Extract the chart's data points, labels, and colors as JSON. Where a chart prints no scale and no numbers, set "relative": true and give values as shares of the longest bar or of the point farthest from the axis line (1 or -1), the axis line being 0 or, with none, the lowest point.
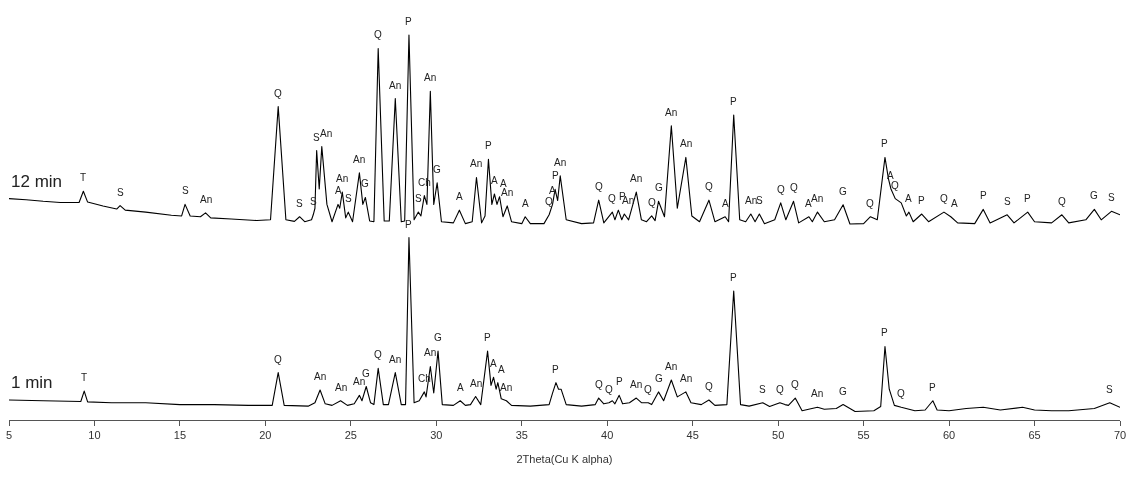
{
  "chart_data": {
    "type": "line",
    "relative": true,
    "xlabel": "2Theta(Cu K alpha)",
    "xlim": [
      5,
      70
    ],
    "xticks": [
      5,
      10,
      15,
      20,
      25,
      30,
      35,
      40,
      45,
      50,
      55,
      60,
      65,
      70
    ],
    "grid": false,
    "legend": false,
    "marker": "none",
    "line_style": "solid",
    "tick_labels": "x",
    "series": [
      {
        "name": "12 min",
        "color": "#000000",
        "x": [
          5,
          6,
          7,
          8,
          9.1,
          9.35,
          9.6,
          10.5,
          11.3,
          11.5,
          11.8,
          13,
          14.5,
          15.1,
          15.3,
          15.6,
          16.2,
          16.5,
          16.8,
          18,
          19.5,
          20.3,
          20.75,
          21.2,
          21.7,
          22.0,
          22.3,
          22.7,
          22.8,
          22.9,
          23.0,
          23.15,
          23.3,
          23.6,
          23.9,
          24.25,
          24.35,
          24.5,
          24.7,
          24.85,
          25.1,
          25.5,
          25.7,
          25.85,
          26.1,
          26.35,
          26.6,
          26.95,
          27.25,
          27.6,
          27.95,
          28.15,
          28.4,
          28.7,
          28.95,
          29.1,
          29.3,
          29.45,
          29.65,
          29.85,
          30.05,
          30.3,
          31.0,
          31.35,
          31.7,
          32.1,
          32.35,
          32.65,
          32.85,
          33.05,
          33.25,
          33.4,
          33.55,
          33.7,
          33.9,
          34.15,
          34.4,
          35.0,
          35.2,
          35.5,
          36.3,
          36.6,
          36.8,
          36.95,
          37.1,
          37.25,
          37.6,
          38.5,
          39.2,
          39.5,
          39.8,
          40.3,
          40.45,
          40.65,
          40.85,
          41.0,
          41.25,
          41.7,
          42.0,
          42.3,
          42.6,
          42.8,
          43.0,
          43.35,
          43.75,
          44.1,
          44.6,
          44.95,
          45.4,
          45.95,
          46.3,
          46.9,
          47.1,
          47.4,
          47.75,
          48.1,
          48.4,
          48.65,
          48.9,
          49.2,
          49.8,
          50.15,
          50.45,
          50.9,
          51.2,
          51.8,
          52.0,
          52.3,
          52.7,
          53.3,
          53.8,
          54.2,
          55.0,
          55.4,
          55.8,
          56.25,
          56.45,
          56.6,
          56.85,
          57.2,
          57.5,
          57.65,
          57.9,
          58.4,
          58.8,
          59.7,
          60.1,
          60.5,
          61.5,
          62.0,
          62.4,
          63.4,
          63.8,
          64.6,
          65.0,
          66.0,
          66.6,
          67.0,
          68.0,
          68.5,
          68.9,
          69.5,
          70
        ],
        "values": [
          0.575,
          0.572,
          0.568,
          0.565,
          0.565,
          0.594,
          0.566,
          0.556,
          0.548,
          0.557,
          0.545,
          0.54,
          0.532,
          0.53,
          0.56,
          0.53,
          0.528,
          0.538,
          0.525,
          0.522,
          0.518,
          0.52,
          0.814,
          0.52,
          0.516,
          0.528,
          0.515,
          0.52,
          0.533,
          0.55,
          0.7,
          0.6,
          0.71,
          0.56,
          0.515,
          0.56,
          0.55,
          0.592,
          0.525,
          0.54,
          0.515,
          0.642,
          0.56,
          0.578,
          0.517,
          0.515,
          0.965,
          0.517,
          0.517,
          0.835,
          0.515,
          0.517,
          1.0,
          0.52,
          0.54,
          0.53,
          0.583,
          0.56,
          0.854,
          0.56,
          0.616,
          0.515,
          0.512,
          0.545,
          0.51,
          0.515,
          0.63,
          0.512,
          0.53,
          0.677,
          0.56,
          0.587,
          0.56,
          0.58,
          0.528,
          0.556,
          0.515,
          0.51,
          0.528,
          0.51,
          0.51,
          0.533,
          0.56,
          0.599,
          0.57,
          0.634,
          0.52,
          0.51,
          0.512,
          0.571,
          0.512,
          0.54,
          0.52,
          0.545,
          0.52,
          0.535,
          0.52,
          0.592,
          0.52,
          0.515,
          0.53,
          0.518,
          0.568,
          0.528,
          0.764,
          0.55,
          0.682,
          0.53,
          0.515,
          0.571,
          0.515,
          0.528,
          0.515,
          0.792,
          0.52,
          0.515,
          0.535,
          0.515,
          0.535,
          0.51,
          0.52,
          0.564,
          0.52,
          0.568,
          0.512,
          0.528,
          0.515,
          0.54,
          0.515,
          0.52,
          0.559,
          0.509,
          0.51,
          0.528,
          0.52,
          0.682,
          0.627,
          0.6,
          0.575,
          0.564,
          0.53,
          0.54,
          0.515,
          0.535,
          0.515,
          0.54,
          0.528,
          0.512,
          0.51,
          0.547,
          0.512,
          0.533,
          0.512,
          0.54,
          0.515,
          0.512,
          0.533,
          0.512,
          0.52,
          0.547,
          0.52,
          0.542,
          0.533
        ]
      },
      {
        "name": "1 min",
        "color": "#000000",
        "x": [
          5,
          7,
          9.2,
          9.4,
          9.6,
          11,
          13,
          15,
          17,
          19,
          20.4,
          20.75,
          21.1,
          22.5,
          22.9,
          23.2,
          23.5,
          23.9,
          24.4,
          24.8,
          25.2,
          25.5,
          25.65,
          25.9,
          26.15,
          26.35,
          26.6,
          26.9,
          27.2,
          27.6,
          27.95,
          28.2,
          28.4,
          28.7,
          29.0,
          29.3,
          29.4,
          29.65,
          29.85,
          30.1,
          30.35,
          31.0,
          31.4,
          31.7,
          32.0,
          32.3,
          32.6,
          33.0,
          33.2,
          33.35,
          33.5,
          33.6,
          33.8,
          34.1,
          34.4,
          35.5,
          36.6,
          36.8,
          37.0,
          37.15,
          37.3,
          37.6,
          38.5,
          39.3,
          39.5,
          39.8,
          40.1,
          40.3,
          40.45,
          40.7,
          40.9,
          41.3,
          41.7,
          42.0,
          42.4,
          42.6,
          43.0,
          43.3,
          43.75,
          44.1,
          44.6,
          44.9,
          45.5,
          45.95,
          46.3,
          47.0,
          47.4,
          47.8,
          48.3,
          49.1,
          49.5,
          50.1,
          50.4,
          50.6,
          51.0,
          51.4,
          52.3,
          52.7,
          53.4,
          53.8,
          54.5,
          55.6,
          56.0,
          56.25,
          56.5,
          56.8,
          57.2,
          58.0,
          58.6,
          59.05,
          59.3,
          60.0,
          61.0,
          62.0,
          63.0,
          64.3,
          65,
          66,
          67,
          68.5,
          69.4,
          70
        ],
        "values": [
          0.052,
          0.05,
          0.048,
          0.075,
          0.047,
          0.045,
          0.045,
          0.04,
          0.04,
          0.038,
          0.038,
          0.123,
          0.038,
          0.036,
          0.045,
          0.078,
          0.042,
          0.038,
          0.05,
          0.038,
          0.042,
          0.064,
          0.05,
          0.087,
          0.045,
          0.04,
          0.134,
          0.04,
          0.04,
          0.123,
          0.04,
          0.04,
          0.474,
          0.045,
          0.05,
          0.073,
          0.06,
          0.139,
          0.07,
          0.179,
          0.04,
          0.038,
          0.05,
          0.038,
          0.04,
          0.061,
          0.04,
          0.179,
          0.09,
          0.111,
          0.08,
          0.097,
          0.055,
          0.05,
          0.038,
          0.036,
          0.04,
          0.07,
          0.097,
          0.08,
          0.08,
          0.04,
          0.036,
          0.04,
          0.057,
          0.042,
          0.045,
          0.05,
          0.042,
          0.064,
          0.042,
          0.045,
          0.057,
          0.045,
          0.045,
          0.04,
          0.073,
          0.05,
          0.104,
          0.06,
          0.073,
          0.045,
          0.04,
          0.052,
          0.038,
          0.04,
          0.335,
          0.04,
          0.036,
          0.045,
          0.035,
          0.045,
          0.04,
          0.038,
          0.057,
          0.024,
          0.033,
          0.028,
          0.03,
          0.04,
          0.022,
          0.024,
          0.035,
          0.191,
          0.08,
          0.038,
          0.033,
          0.024,
          0.026,
          0.05,
          0.026,
          0.024,
          0.03,
          0.033,
          0.026,
          0.033,
          0.026,
          0.024,
          0.024,
          0.03,
          0.045,
          0.033
        ]
      }
    ],
    "annotations": [
      {
        "text": "T",
        "x": 9.35,
        "y": 0.594
      },
      {
        "text": "S",
        "x": 11.5,
        "y": 0.557
      },
      {
        "text": "S",
        "x": 15.3,
        "y": 0.56
      },
      {
        "text": "An",
        "x": 16.5,
        "y": 0.538
      },
      {
        "text": "Q",
        "x": 20.75,
        "y": 0.814
      },
      {
        "text": "S",
        "x": 22.0,
        "y": 0.528
      },
      {
        "text": "S",
        "x": 22.8,
        "y": 0.533
      },
      {
        "text": "S",
        "x": 23.0,
        "y": 0.7
      },
      {
        "text": "An",
        "x": 23.3,
        "y": 0.71
      },
      {
        "text": "A",
        "x": 24.25,
        "y": 0.56
      },
      {
        "text": "An",
        "x": 24.5,
        "y": 0.592
      },
      {
        "text": "S",
        "x": 24.85,
        "y": 0.54
      },
      {
        "text": "An",
        "x": 25.5,
        "y": 0.642
      },
      {
        "text": "G",
        "x": 25.85,
        "y": 0.578
      },
      {
        "text": "Q",
        "x": 26.6,
        "y": 0.965
      },
      {
        "text": "An",
        "x": 27.6,
        "y": 0.835
      },
      {
        "text": "P",
        "x": 28.4,
        "y": 1.0
      },
      {
        "text": "S",
        "x": 28.95,
        "y": 0.54
      },
      {
        "text": "Ch",
        "x": 29.3,
        "y": 0.583
      },
      {
        "text": "An",
        "x": 29.65,
        "y": 0.854
      },
      {
        "text": "G",
        "x": 30.05,
        "y": 0.616
      },
      {
        "text": "A",
        "x": 31.35,
        "y": 0.545
      },
      {
        "text": "An",
        "x": 32.35,
        "y": 0.63
      },
      {
        "text": "P",
        "x": 33.05,
        "y": 0.677
      },
      {
        "text": "A",
        "x": 33.4,
        "y": 0.587
      },
      {
        "text": "A",
        "x": 33.7,
        "y": 0.58
      },
      {
        "text": "An",
        "x": 34.15,
        "y": 0.556
      },
      {
        "text": "A",
        "x": 35.2,
        "y": 0.528
      },
      {
        "text": "Q",
        "x": 36.6,
        "y": 0.533
      },
      {
        "text": "A",
        "x": 36.8,
        "y": 0.56
      },
      {
        "text": "P",
        "x": 36.95,
        "y": 0.599
      },
      {
        "text": "An",
        "x": 37.25,
        "y": 0.634
      },
      {
        "text": "Q",
        "x": 39.5,
        "y": 0.571
      },
      {
        "text": "Q",
        "x": 40.3,
        "y": 0.54
      },
      {
        "text": "P",
        "x": 40.65,
        "y": 0.545
      },
      {
        "text": "An",
        "x": 41.0,
        "y": 0.535
      },
      {
        "text": "An",
        "x": 41.7,
        "y": 0.592
      },
      {
        "text": "Q",
        "x": 42.6,
        "y": 0.53
      },
      {
        "text": "G",
        "x": 43.0,
        "y": 0.568
      },
      {
        "text": "An",
        "x": 43.75,
        "y": 0.764
      },
      {
        "text": "An",
        "x": 44.6,
        "y": 0.682
      },
      {
        "text": "Q",
        "x": 45.95,
        "y": 0.571
      },
      {
        "text": "A",
        "x": 46.9,
        "y": 0.528
      },
      {
        "text": "P",
        "x": 47.4,
        "y": 0.792
      },
      {
        "text": "An",
        "x": 48.4,
        "y": 0.535
      },
      {
        "text": "S",
        "x": 48.9,
        "y": 0.535
      },
      {
        "text": "Q",
        "x": 50.15,
        "y": 0.564
      },
      {
        "text": "Q",
        "x": 50.9,
        "y": 0.568
      },
      {
        "text": "A",
        "x": 51.8,
        "y": 0.528
      },
      {
        "text": "An",
        "x": 52.3,
        "y": 0.54
      },
      {
        "text": "G",
        "x": 53.8,
        "y": 0.559
      },
      {
        "text": "Q",
        "x": 55.4,
        "y": 0.528
      },
      {
        "text": "P",
        "x": 56.25,
        "y": 0.682
      },
      {
        "text": "A",
        "x": 56.6,
        "y": 0.6
      },
      {
        "text": "Q",
        "x": 56.85,
        "y": 0.575
      },
      {
        "text": "A",
        "x": 57.65,
        "y": 0.54
      },
      {
        "text": "P",
        "x": 58.4,
        "y": 0.535
      },
      {
        "text": "Q",
        "x": 59.7,
        "y": 0.54
      },
      {
        "text": "A",
        "x": 60.1,
        "y": 0.528
      },
      {
        "text": "P",
        "x": 62.0,
        "y": 0.547
      },
      {
        "text": "S",
        "x": 63.4,
        "y": 0.533
      },
      {
        "text": "P",
        "x": 64.6,
        "y": 0.54
      },
      {
        "text": "Q",
        "x": 66.6,
        "y": 0.533
      },
      {
        "text": "G",
        "x": 68.5,
        "y": 0.547
      },
      {
        "text": "S",
        "x": 69.5,
        "y": 0.542
      },
      {
        "text": "T",
        "x": 9.4,
        "y": 0.075
      },
      {
        "text": "Q",
        "x": 20.75,
        "y": 0.123
      },
      {
        "text": "An",
        "x": 23.2,
        "y": 0.078
      },
      {
        "text": "An",
        "x": 24.4,
        "y": 0.05
      },
      {
        "text": "An",
        "x": 25.5,
        "y": 0.064
      },
      {
        "text": "G",
        "x": 25.9,
        "y": 0.087
      },
      {
        "text": "Q",
        "x": 26.6,
        "y": 0.134
      },
      {
        "text": "An",
        "x": 27.6,
        "y": 0.123
      },
      {
        "text": "P",
        "x": 28.4,
        "y": 0.474
      },
      {
        "text": "Ch",
        "x": 29.3,
        "y": 0.073
      },
      {
        "text": "An",
        "x": 29.65,
        "y": 0.139
      },
      {
        "text": "G",
        "x": 30.1,
        "y": 0.179
      },
      {
        "text": "A",
        "x": 31.4,
        "y": 0.05
      },
      {
        "text": "An",
        "x": 32.3,
        "y": 0.061
      },
      {
        "text": "P",
        "x": 33.0,
        "y": 0.179
      },
      {
        "text": "A",
        "x": 33.35,
        "y": 0.111
      },
      {
        "text": "A",
        "x": 33.6,
        "y": 0.097
      },
      {
        "text": "An",
        "x": 34.1,
        "y": 0.05
      },
      {
        "text": "P",
        "x": 37.0,
        "y": 0.097
      },
      {
        "text": "Q",
        "x": 39.5,
        "y": 0.057
      },
      {
        "text": "Q",
        "x": 40.1,
        "y": 0.045
      },
      {
        "text": "P",
        "x": 40.7,
        "y": 0.064
      },
      {
        "text": "An",
        "x": 41.7,
        "y": 0.057
      },
      {
        "text": "Q",
        "x": 42.4,
        "y": 0.045
      },
      {
        "text": "G",
        "x": 43.0,
        "y": 0.073
      },
      {
        "text": "An",
        "x": 43.75,
        "y": 0.104
      },
      {
        "text": "An",
        "x": 44.6,
        "y": 0.073
      },
      {
        "text": "Q",
        "x": 45.95,
        "y": 0.052
      },
      {
        "text": "P",
        "x": 47.4,
        "y": 0.335
      },
      {
        "text": "S",
        "x": 49.1,
        "y": 0.045
      },
      {
        "text": "Q",
        "x": 50.1,
        "y": 0.045
      },
      {
        "text": "Q",
        "x": 51.0,
        "y": 0.057
      },
      {
        "text": "An",
        "x": 52.3,
        "y": 0.033
      },
      {
        "text": "G",
        "x": 53.8,
        "y": 0.04
      },
      {
        "text": "P",
        "x": 56.25,
        "y": 0.191
      },
      {
        "text": "Q",
        "x": 57.2,
        "y": 0.033
      },
      {
        "text": "P",
        "x": 59.05,
        "y": 0.05
      },
      {
        "text": "S",
        "x": 69.4,
        "y": 0.045
      }
    ]
  }
}
